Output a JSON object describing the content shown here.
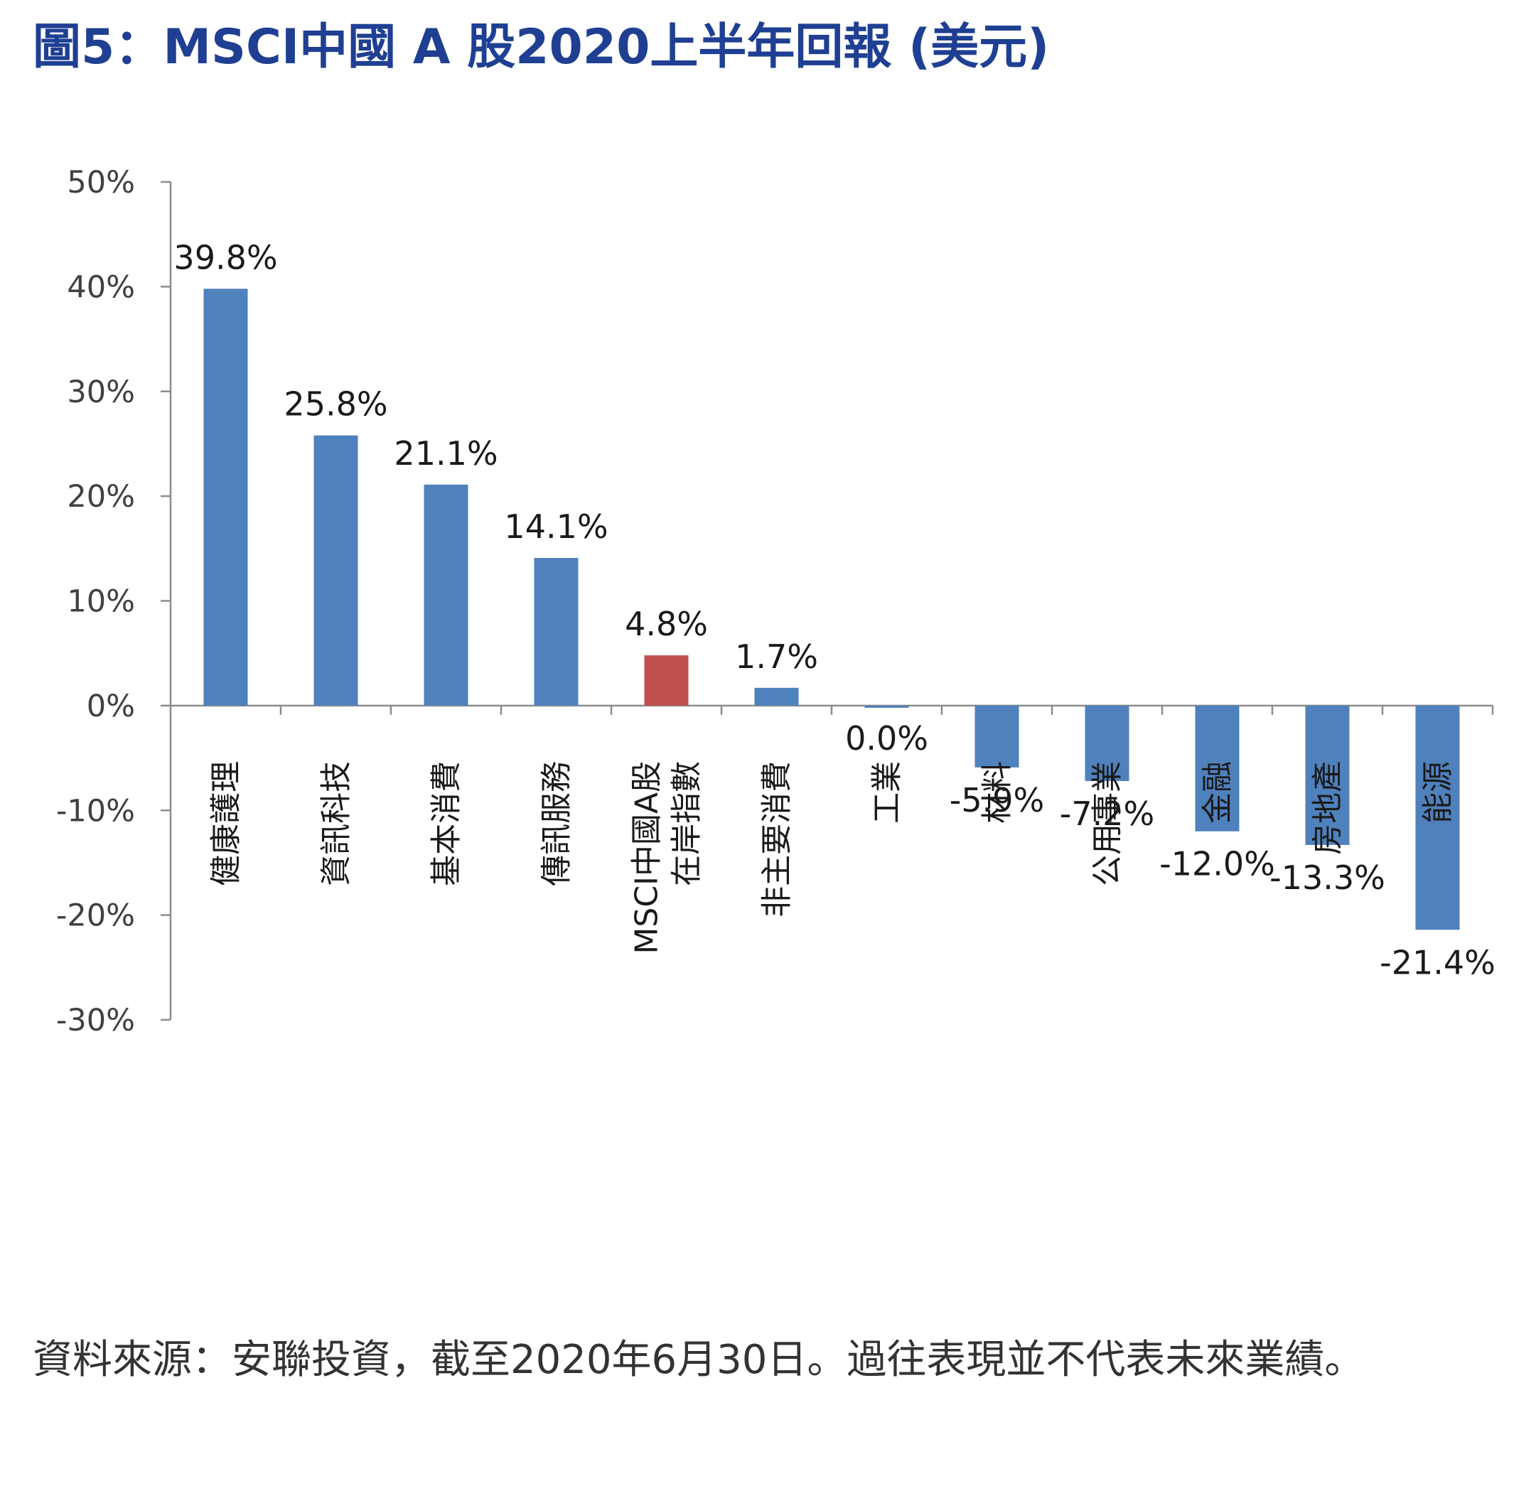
{
  "title": "圖5：MSCI中國 A 股2020上半年回報 (美元)",
  "chart_data": {
    "type": "bar",
    "title": "圖5：MSCI中國 A 股2020上半年回報 (美元)",
    "xlabel": "",
    "ylabel": "",
    "ylim": [
      -30,
      50
    ],
    "yticks": [
      50,
      40,
      30,
      20,
      10,
      0,
      -10,
      -20,
      -30
    ],
    "ytick_labels": [
      "50%",
      "40%",
      "30%",
      "20%",
      "10%",
      "0%",
      "-10%",
      "-20%",
      "-30%"
    ],
    "grid": false,
    "legend": "none",
    "colors": {
      "sector": "#4f81bd",
      "index": "#c0504d",
      "axis": "#8c8c8c"
    },
    "categories": [
      [
        "健康護理"
      ],
      [
        "資訊科技"
      ],
      [
        "基本消費"
      ],
      [
        "傳訊服務"
      ],
      [
        "MSCI中國A股",
        "在岸指數"
      ],
      [
        "非主要消費"
      ],
      [
        "工業"
      ],
      [
        "材料"
      ],
      [
        "公用事業"
      ],
      [
        "金融"
      ],
      [
        "房地產"
      ],
      [
        "能源"
      ]
    ],
    "values": [
      39.8,
      25.8,
      21.1,
      14.1,
      4.8,
      1.7,
      0.0,
      -5.9,
      -7.2,
      -12.0,
      -13.3,
      -21.4
    ],
    "value_labels": [
      "39.8%",
      "25.8%",
      "21.1%",
      "14.1%",
      "4.8%",
      "1.7%",
      "0.0%",
      "-5.9%",
      "-7.2%",
      "-12.0%",
      "-13.3%",
      "-21.4%"
    ],
    "highlight_index": 4
  },
  "source_note": "資料來源：安聯投資，截至2020年6月30日。過往表現並不代表未來業績。"
}
